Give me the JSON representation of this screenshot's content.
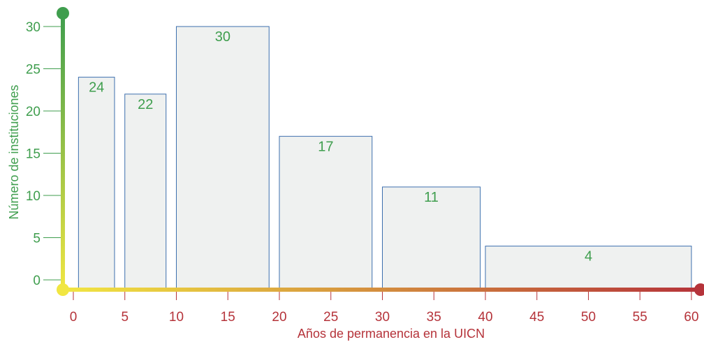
{
  "chart_data": {
    "type": "bar",
    "xlabel": "Años de permanencia en la UICN",
    "ylabel": "Número de instituciones",
    "xlim": [
      0,
      60
    ],
    "ylim": [
      0,
      30
    ],
    "x_ticks": [
      "0",
      "5",
      "10",
      "15",
      "20",
      "25",
      "30",
      "35",
      "40",
      "45",
      "50",
      "55",
      "60"
    ],
    "y_ticks": [
      "0",
      "5",
      "10",
      "15",
      "20",
      "25",
      "30"
    ],
    "bars": [
      {
        "x_start": 0.5,
        "x_end": 4,
        "value": 24,
        "label": "24"
      },
      {
        "x_start": 5,
        "x_end": 9,
        "value": 22,
        "label": "22"
      },
      {
        "x_start": 10,
        "x_end": 19,
        "value": 30,
        "label": "30"
      },
      {
        "x_start": 20,
        "x_end": 29,
        "value": 17,
        "label": "17"
      },
      {
        "x_start": 30,
        "x_end": 39.5,
        "value": 11,
        "label": "11"
      },
      {
        "x_start": 40,
        "x_end": 60,
        "value": 4,
        "label": "4"
      }
    ],
    "grid": false,
    "colors": {
      "bar_fill": "#eff1f0",
      "bar_stroke": "#3c6fae",
      "y_axis_color": "#3f9e4e",
      "x_axis_color": "#b5333a",
      "axis_start_color": "#f1e642"
    }
  }
}
